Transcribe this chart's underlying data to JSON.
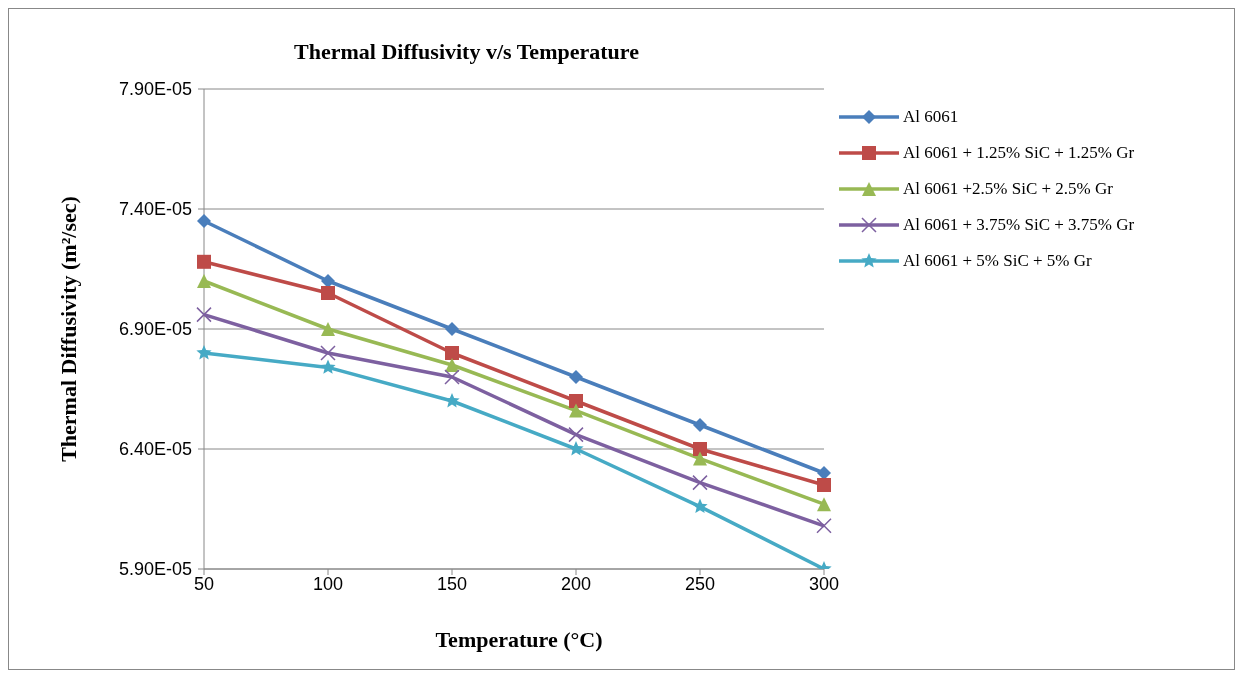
{
  "chart_data": {
    "type": "line",
    "title": "Thermal Diffusivity v/s Temperature",
    "xlabel": "Temperature (°C)",
    "ylabel": "Thermal Diffusivity (m²/sec)",
    "categories": [
      "50",
      "100",
      "150",
      "200",
      "250",
      "300"
    ],
    "series": [
      {
        "name": "Al 6061",
        "color": "#4a7ebb",
        "marker": "diamond",
        "values": [
          7.35e-05,
          7.1e-05,
          6.9e-05,
          6.7e-05,
          6.5e-05,
          6.3e-05
        ]
      },
      {
        "name": "Al 6061 + 1.25% SiC + 1.25% Gr",
        "color": "#be4b48",
        "marker": "square",
        "values": [
          7.18e-05,
          7.05e-05,
          6.8e-05,
          6.6e-05,
          6.4e-05,
          6.25e-05
        ]
      },
      {
        "name": "Al 6061 +2.5% SiC + 2.5% Gr",
        "color": "#98b954",
        "marker": "triangle",
        "values": [
          7.1e-05,
          6.9e-05,
          6.75e-05,
          6.56e-05,
          6.36e-05,
          6.17e-05
        ]
      },
      {
        "name": "Al 6061 + 3.75% SiC + 3.75% Gr",
        "color": "#7d60a0",
        "marker": "cross",
        "values": [
          6.96e-05,
          6.8e-05,
          6.7e-05,
          6.46e-05,
          6.26e-05,
          6.08e-05
        ]
      },
      {
        "name": "Al 6061 + 5% SiC + 5% Gr",
        "color": "#46aac5",
        "marker": "star",
        "values": [
          6.8e-05,
          6.74e-05,
          6.6e-05,
          6.4e-05,
          6.16e-05,
          5.9e-05
        ]
      }
    ],
    "ylim": [
      5.9e-05,
      7.9e-05
    ],
    "yticks": [
      {
        "value": 5.9e-05,
        "label": "5.90E-05"
      },
      {
        "value": 6.4e-05,
        "label": "6.40E-05"
      },
      {
        "value": 6.9e-05,
        "label": "6.90E-05"
      },
      {
        "value": 7.4e-05,
        "label": "7.40E-05"
      },
      {
        "value": 7.9e-05,
        "label": "7.90E-05"
      }
    ],
    "grid": "y",
    "legend": "right",
    "line_style": "solid"
  }
}
